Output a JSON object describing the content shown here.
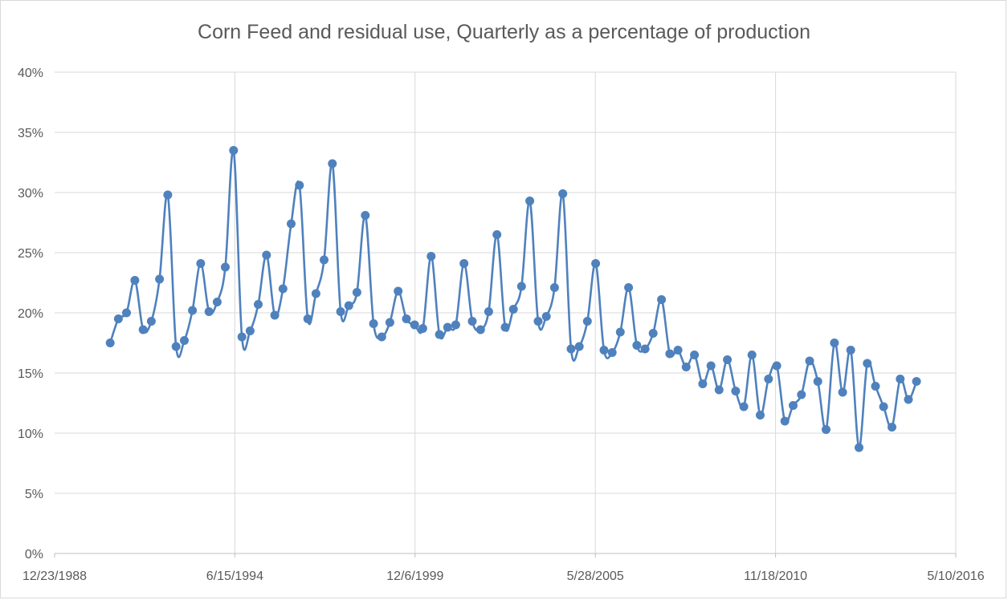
{
  "chart_data": {
    "type": "line",
    "title": "Corn Feed and residual use, Quarterly as a percentage of production",
    "xlabel": "",
    "ylabel": "",
    "x_tick_labels": [
      "12/23/1988",
      "6/15/1994",
      "12/6/1999",
      "5/28/2005",
      "11/18/2010",
      "5/10/2016"
    ],
    "y_tick_labels": [
      "0%",
      "5%",
      "10%",
      "15%",
      "20%",
      "25%",
      "30%",
      "35%",
      "40%"
    ],
    "ylim": [
      0,
      0.4
    ],
    "xlim": [
      "1988-12-23",
      "2016-05-10"
    ],
    "grid": true,
    "legend": "none",
    "color": "#4F81BD",
    "series": [
      {
        "x": [
          "1990-09-01",
          "1990-12-01",
          "1991-03-01",
          "1991-06-01",
          "1991-09-01",
          "1991-12-01",
          "1992-03-01",
          "1992-06-01",
          "1992-09-01",
          "1992-12-01",
          "1993-03-01",
          "1993-06-01",
          "1993-09-01",
          "1993-12-01",
          "1994-03-01",
          "1994-06-01",
          "1994-09-01",
          "1994-12-01",
          "1995-03-01",
          "1995-06-01",
          "1995-09-01",
          "1995-12-01",
          "1996-03-01",
          "1996-06-01",
          "1996-09-01",
          "1996-12-01",
          "1997-03-01",
          "1997-06-01",
          "1997-09-01",
          "1997-12-01",
          "1998-03-01",
          "1998-06-01",
          "1998-09-01",
          "1998-12-01",
          "1999-03-01",
          "1999-06-01",
          "1999-09-01",
          "1999-12-01",
          "2000-03-01",
          "2000-06-01",
          "2000-09-01",
          "2000-12-01",
          "2001-03-01",
          "2001-06-01",
          "2001-09-01",
          "2001-12-01",
          "2002-03-01",
          "2002-06-01",
          "2002-09-01",
          "2002-12-01",
          "2003-03-01",
          "2003-06-01",
          "2003-09-01",
          "2003-12-01",
          "2004-03-01",
          "2004-06-01",
          "2004-09-01",
          "2004-12-01",
          "2005-03-01",
          "2005-06-01",
          "2005-09-01",
          "2005-12-01",
          "2006-03-01",
          "2006-06-01",
          "2006-09-01",
          "2006-12-01",
          "2007-03-01",
          "2007-06-01",
          "2007-09-01",
          "2007-12-01",
          "2008-03-01",
          "2008-06-01",
          "2008-09-01",
          "2008-12-01",
          "2009-03-01",
          "2009-06-01",
          "2009-09-01",
          "2009-12-01",
          "2010-03-01",
          "2010-06-01",
          "2010-09-01",
          "2010-12-01",
          "2011-03-01",
          "2011-06-01",
          "2011-09-01",
          "2011-12-01",
          "2012-03-01",
          "2012-06-01",
          "2012-09-01",
          "2012-12-01",
          "2013-03-01",
          "2013-06-01",
          "2013-09-01",
          "2013-12-01",
          "2014-03-01",
          "2014-06-01",
          "2014-09-01",
          "2014-12-01",
          "2015-03-01"
        ],
        "values": [
          0.175,
          0.195,
          0.2,
          0.227,
          0.186,
          0.193,
          0.228,
          0.298,
          0.172,
          0.177,
          0.202,
          0.241,
          0.201,
          0.209,
          0.238,
          0.335,
          0.18,
          0.185,
          0.207,
          0.248,
          0.198,
          0.22,
          0.274,
          0.306,
          0.195,
          0.216,
          0.244,
          0.324,
          0.201,
          0.206,
          0.217,
          0.281,
          0.191,
          0.18,
          0.192,
          0.218,
          0.195,
          0.19,
          0.187,
          0.247,
          0.182,
          0.188,
          0.19,
          0.241,
          0.193,
          0.186,
          0.201,
          0.265,
          0.188,
          0.203,
          0.222,
          0.293,
          0.193,
          0.197,
          0.221,
          0.299,
          0.17,
          0.172,
          0.193,
          0.241,
          0.169,
          0.167,
          0.184,
          0.221,
          0.173,
          0.17,
          0.183,
          0.211,
          0.166,
          0.169,
          0.155,
          0.165,
          0.141,
          0.156,
          0.136,
          0.161,
          0.135,
          0.122,
          0.165,
          0.115,
          0.145,
          0.156,
          0.11,
          0.123,
          0.132,
          0.16,
          0.143,
          0.103,
          0.175,
          0.134,
          0.169,
          0.088,
          0.158,
          0.139,
          0.122,
          0.105,
          0.145,
          0.128,
          0.143
        ]
      }
    ]
  }
}
